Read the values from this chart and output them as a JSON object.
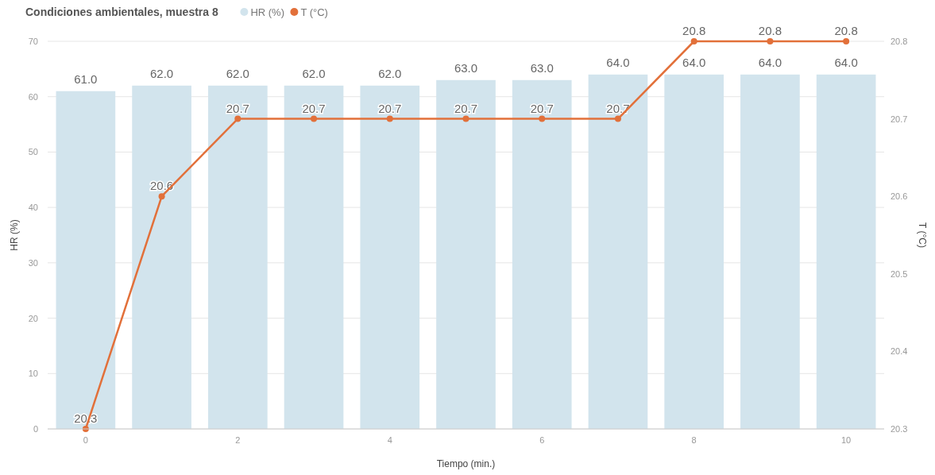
{
  "chart_data": {
    "type": "bar",
    "title": "Condiciones ambientales, muestra 8",
    "xlabel": "Tiempo (min.)",
    "ylabel": "HR (%)",
    "y2label": "T (°C)",
    "x": [
      0,
      1,
      2,
      3,
      4,
      5,
      6,
      7,
      8,
      9,
      10
    ],
    "xlim": [
      -0.5,
      10.5
    ],
    "xticks": [
      0,
      2,
      4,
      6,
      8,
      10
    ],
    "ylim": [
      0,
      70
    ],
    "yticks": [
      0,
      10,
      20,
      30,
      40,
      50,
      60,
      70
    ],
    "y2lim": [
      20.3,
      20.8
    ],
    "y2ticks": [
      20.3,
      20.4,
      20.5,
      20.6,
      20.7,
      20.8
    ],
    "series": [
      {
        "name": "HR (%)",
        "color": "#d2e4ed",
        "values": [
          61.0,
          62.0,
          62.0,
          62.0,
          62.0,
          63.0,
          63.0,
          64.0,
          64.0,
          64.0,
          64.0
        ],
        "value_labels": [
          "61.0",
          "62.0",
          "62.0",
          "62.0",
          "62.0",
          "63.0",
          "63.0",
          "64.0",
          "64.0",
          "64.0",
          "64.0"
        ]
      },
      {
        "name": "T (°C)",
        "type": "line",
        "axis": "y2",
        "color": "#e2703a",
        "values": [
          20.3,
          20.6,
          20.7,
          20.7,
          20.7,
          20.7,
          20.7,
          20.7,
          20.8,
          20.8,
          20.8
        ],
        "value_labels": [
          "20.3",
          "20.6",
          "20.7",
          "20.7",
          "20.7",
          "20.7",
          "20.7",
          "20.7",
          "20.8",
          "20.8",
          "20.8"
        ]
      }
    ],
    "grid": "y",
    "legend": "top left",
    "marker": "circle",
    "line_style": "solid"
  }
}
